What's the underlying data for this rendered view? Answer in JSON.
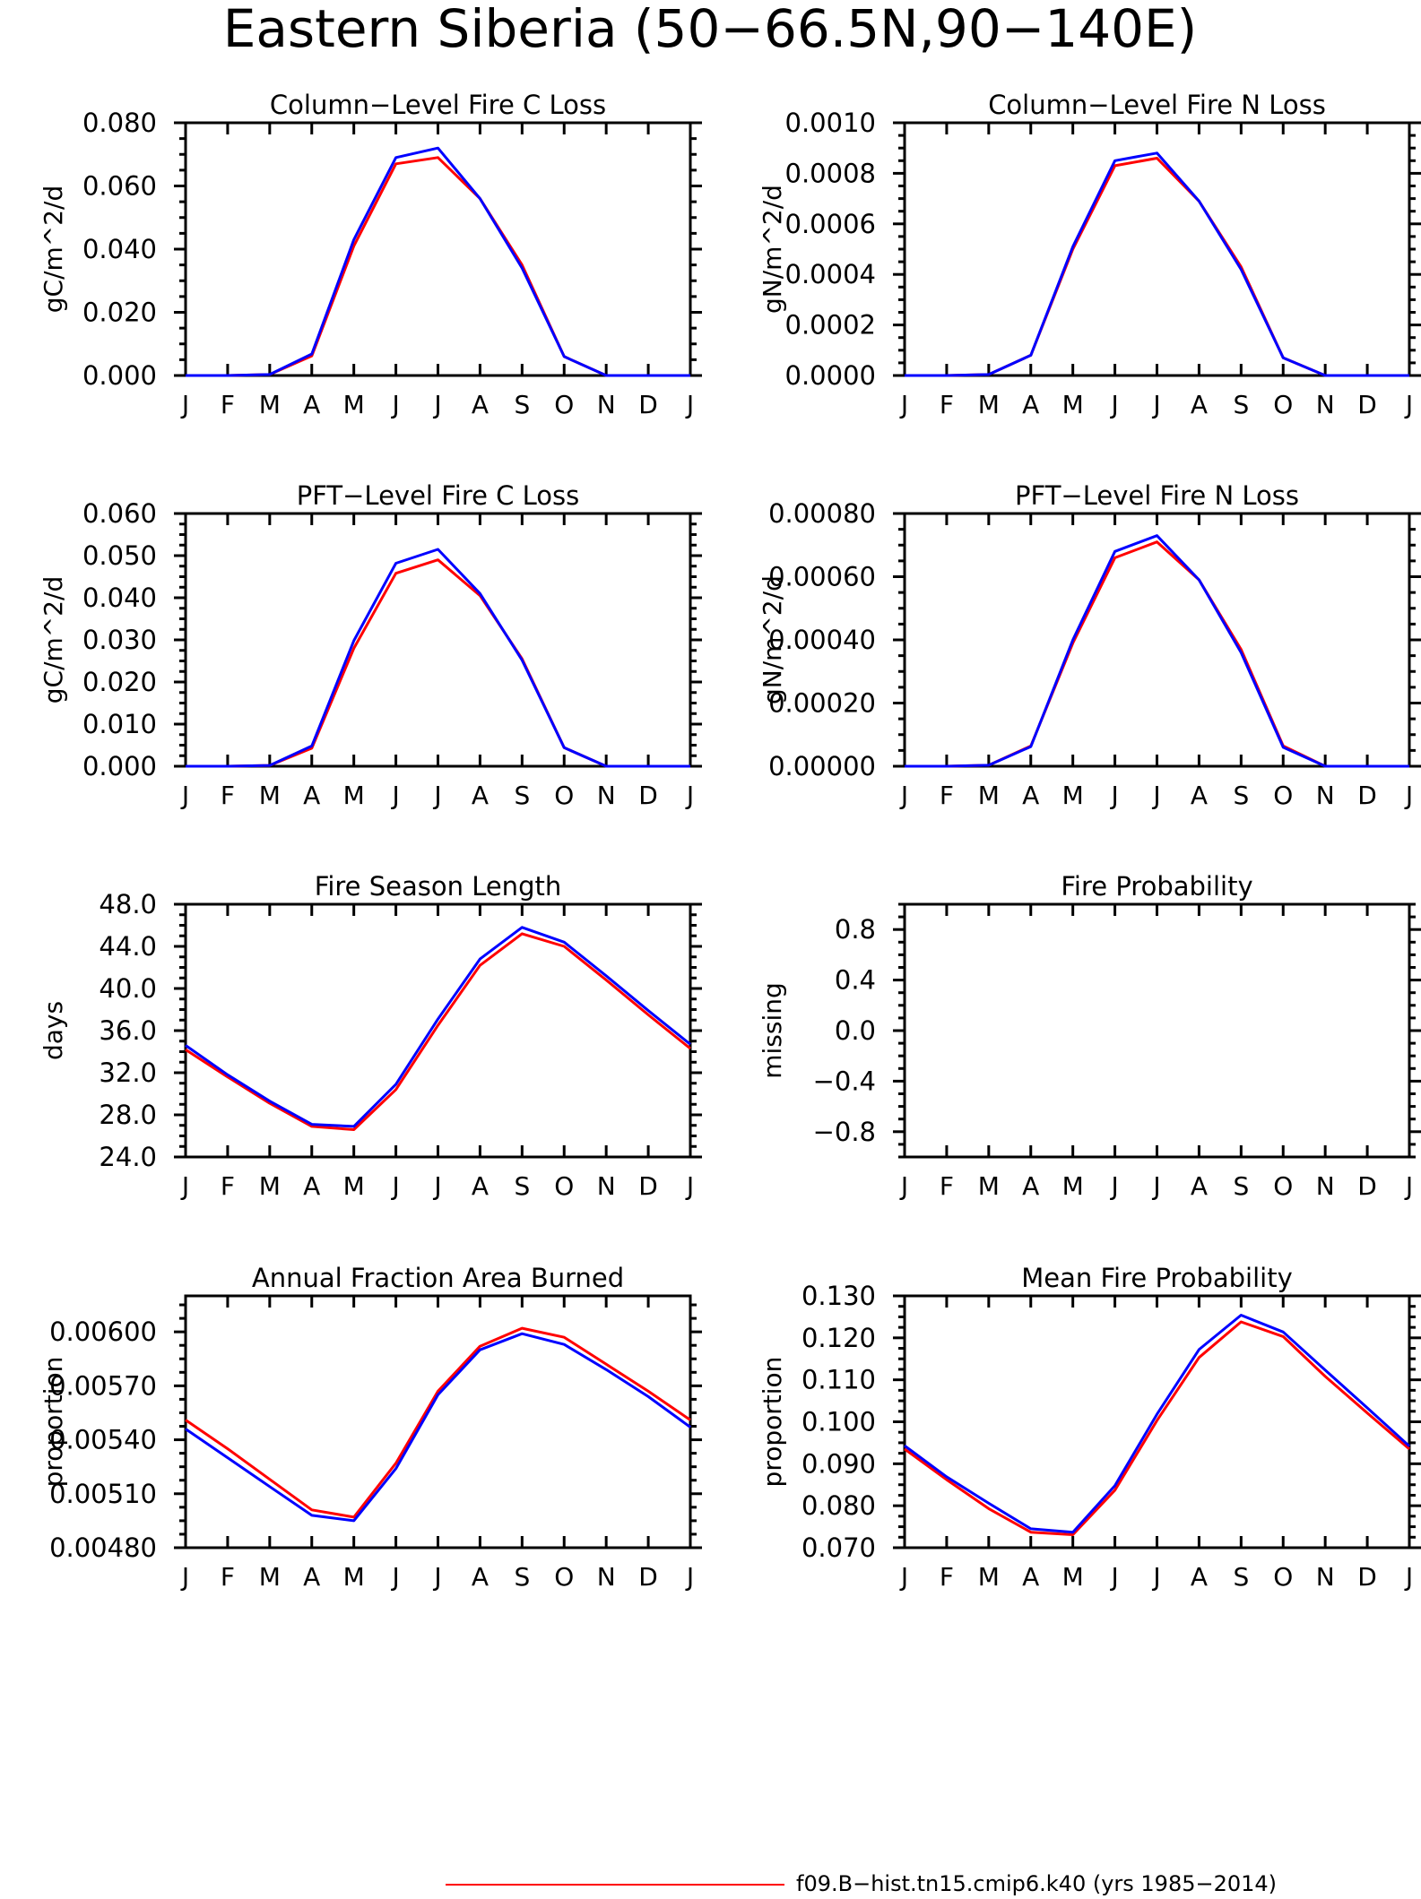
{
  "page": {
    "title": "Eastern Siberia (50−66.5N,90−140E)",
    "legend": {
      "line_color": "#ff0000",
      "label": "f09.B−hist.tn15.cmip6.k40 (yrs 1985−2014)"
    }
  },
  "colors": {
    "red": "#ff0000",
    "blue": "#0000ff"
  },
  "chart_data": [
    {
      "type": "line",
      "title": "Column−Level Fire C Loss",
      "ylabel": "gC/m^2/d",
      "x": [
        "J",
        "F",
        "M",
        "A",
        "M",
        "J",
        "J",
        "A",
        "S",
        "O",
        "N",
        "D",
        "J"
      ],
      "ylim": [
        0,
        0.08
      ],
      "yticks": [
        0,
        0.02,
        0.04,
        0.06,
        0.08
      ],
      "ytick_labels": [
        "0.000",
        "0.020",
        "0.040",
        "0.060",
        "0.080"
      ],
      "series": [
        {
          "color": "#ff0000",
          "values": [
            0,
            0,
            0.0003,
            0.0062,
            0.041,
            0.067,
            0.069,
            0.056,
            0.035,
            0.006,
            0,
            0,
            0
          ]
        },
        {
          "color": "#0000ff",
          "values": [
            0,
            0,
            0.0003,
            0.0068,
            0.043,
            0.069,
            0.072,
            0.056,
            0.034,
            0.006,
            0,
            0,
            0
          ]
        }
      ]
    },
    {
      "type": "line",
      "title": "Column−Level Fire N Loss",
      "ylabel": "gN/m^2/d",
      "x": [
        "J",
        "F",
        "M",
        "A",
        "M",
        "J",
        "J",
        "A",
        "S",
        "O",
        "N",
        "D",
        "J"
      ],
      "ylim": [
        0,
        0.001
      ],
      "yticks": [
        0,
        0.0002,
        0.0004,
        0.0006,
        0.0008,
        0.001
      ],
      "ytick_labels": [
        "0.0000",
        "0.0002",
        "0.0004",
        "0.0006",
        "0.0008",
        "0.0010"
      ],
      "series": [
        {
          "color": "#ff0000",
          "values": [
            0,
            0,
            4e-06,
            8e-05,
            0.0005,
            0.00083,
            0.00086,
            0.00069,
            0.00043,
            7e-05,
            0,
            0,
            0
          ]
        },
        {
          "color": "#0000ff",
          "values": [
            0,
            0,
            4e-06,
            8e-05,
            0.00051,
            0.00085,
            0.00088,
            0.00069,
            0.00042,
            7e-05,
            0,
            0,
            0
          ]
        }
      ]
    },
    {
      "type": "line",
      "title": "PFT−Level Fire C Loss",
      "ylabel": "gC/m^2/d",
      "x": [
        "J",
        "F",
        "M",
        "A",
        "M",
        "J",
        "J",
        "A",
        "S",
        "O",
        "N",
        "D",
        "J"
      ],
      "ylim": [
        0,
        0.06
      ],
      "yticks": [
        0,
        0.01,
        0.02,
        0.03,
        0.04,
        0.05,
        0.06
      ],
      "ytick_labels": [
        "0.000",
        "0.010",
        "0.020",
        "0.030",
        "0.040",
        "0.050",
        "0.060"
      ],
      "series": [
        {
          "color": "#ff0000",
          "values": [
            0,
            0,
            0.0002,
            0.0043,
            0.028,
            0.0458,
            0.049,
            0.0405,
            0.0255,
            0.0044,
            0,
            0,
            0
          ]
        },
        {
          "color": "#0000ff",
          "values": [
            0,
            0,
            0.0002,
            0.0048,
            0.0298,
            0.0482,
            0.0515,
            0.041,
            0.0252,
            0.0044,
            0,
            0,
            0
          ]
        }
      ]
    },
    {
      "type": "line",
      "title": "PFT−Level Fire N Loss",
      "ylabel": "gN/m^2/d",
      "x": [
        "J",
        "F",
        "M",
        "A",
        "M",
        "J",
        "J",
        "A",
        "S",
        "O",
        "N",
        "D",
        "J"
      ],
      "ylim": [
        0,
        0.0008
      ],
      "yticks": [
        0,
        0.0002,
        0.0004,
        0.0006,
        0.0008
      ],
      "ytick_labels": [
        "0.00000",
        "0.00020",
        "0.00040",
        "0.00060",
        "0.00080"
      ],
      "series": [
        {
          "color": "#ff0000",
          "values": [
            0,
            0,
            3e-06,
            6.4e-05,
            0.00039,
            0.00066,
            0.00071,
            0.00059,
            0.00037,
            6.4e-05,
            0,
            0,
            0
          ]
        },
        {
          "color": "#0000ff",
          "values": [
            0,
            0,
            3e-06,
            6.2e-05,
            0.0004,
            0.00068,
            0.00073,
            0.00059,
            0.00036,
            6e-05,
            0,
            0,
            0
          ]
        }
      ]
    },
    {
      "type": "line",
      "title": "Fire Season Length",
      "ylabel": "days",
      "x": [
        "J",
        "F",
        "M",
        "A",
        "M",
        "J",
        "J",
        "A",
        "S",
        "O",
        "N",
        "D",
        "J"
      ],
      "ylim": [
        24,
        48
      ],
      "yticks": [
        24,
        28,
        32,
        36,
        40,
        44,
        48
      ],
      "ytick_labels": [
        "24.0",
        "28.0",
        "32.0",
        "36.0",
        "40.0",
        "44.0",
        "48.0"
      ],
      "series": [
        {
          "color": "#ff0000",
          "values": [
            34.2,
            31.6,
            29.1,
            26.9,
            26.6,
            30.4,
            36.5,
            42.2,
            45.2,
            44.0,
            40.8,
            37.5,
            34.3
          ]
        },
        {
          "color": "#0000ff",
          "values": [
            34.6,
            31.8,
            29.3,
            27.1,
            26.9,
            30.9,
            37.1,
            42.8,
            45.8,
            44.4,
            41.2,
            37.9,
            34.7
          ]
        }
      ]
    },
    {
      "type": "line",
      "title": "Fire Probability",
      "ylabel": "missing",
      "x": [
        "J",
        "F",
        "M",
        "A",
        "M",
        "J",
        "J",
        "A",
        "S",
        "O",
        "N",
        "D",
        "J"
      ],
      "ylim": [
        -1,
        1
      ],
      "yticks": [
        -0.8,
        -0.4,
        0,
        0.4,
        0.8
      ],
      "ytick_labels": [
        "−0.8",
        "−0.4",
        "0.0",
        "0.4",
        "0.8"
      ],
      "series": []
    },
    {
      "type": "line",
      "title": "Annual Fraction Area Burned",
      "ylabel": "proportion",
      "x": [
        "J",
        "F",
        "M",
        "A",
        "M",
        "J",
        "J",
        "A",
        "S",
        "O",
        "N",
        "D",
        "J"
      ],
      "ylim": [
        0.0048,
        0.0062
      ],
      "yticks": [
        0.0048,
        0.0051,
        0.0054,
        0.0057,
        0.006
      ],
      "ytick_labels": [
        "0.00480",
        "0.00510",
        "0.00540",
        "0.00570",
        "0.00600"
      ],
      "series": [
        {
          "color": "#ff0000",
          "values": [
            0.00551,
            0.00535,
            0.00518,
            0.00501,
            0.00497,
            0.00527,
            0.00567,
            0.00592,
            0.00602,
            0.00597,
            0.00582,
            0.00567,
            0.00551
          ]
        },
        {
          "color": "#0000ff",
          "values": [
            0.00546,
            0.0053,
            0.00514,
            0.00498,
            0.00495,
            0.00524,
            0.00565,
            0.0059,
            0.00599,
            0.00593,
            0.00579,
            0.00564,
            0.00547
          ]
        }
      ]
    },
    {
      "type": "line",
      "title": "Mean Fire Probability",
      "ylabel": "proportion",
      "x": [
        "J",
        "F",
        "M",
        "A",
        "M",
        "J",
        "J",
        "A",
        "S",
        "O",
        "N",
        "D",
        "J"
      ],
      "ylim": [
        0.07,
        0.13
      ],
      "yticks": [
        0.07,
        0.08,
        0.09,
        0.1,
        0.11,
        0.12,
        0.13
      ],
      "ytick_labels": [
        "0.070",
        "0.080",
        "0.090",
        "0.100",
        "0.110",
        "0.120",
        "0.130"
      ],
      "series": [
        {
          "color": "#ff0000",
          "values": [
            0.0935,
            0.0862,
            0.0793,
            0.0737,
            0.0731,
            0.0837,
            0.1003,
            0.1153,
            0.1238,
            0.1203,
            0.1108,
            0.1021,
            0.0935
          ]
        },
        {
          "color": "#0000ff",
          "values": [
            0.0943,
            0.0869,
            0.0806,
            0.0745,
            0.0737,
            0.0848,
            0.1018,
            0.1172,
            0.1254,
            0.1214,
            0.1123,
            0.1033,
            0.0942
          ]
        }
      ]
    }
  ]
}
